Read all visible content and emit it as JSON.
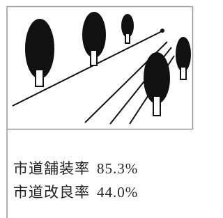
{
  "rows": [
    {
      "label": "市道舗装率",
      "value": "85.3%"
    },
    {
      "label": "市道改良率",
      "value": "44.0%"
    }
  ]
}
